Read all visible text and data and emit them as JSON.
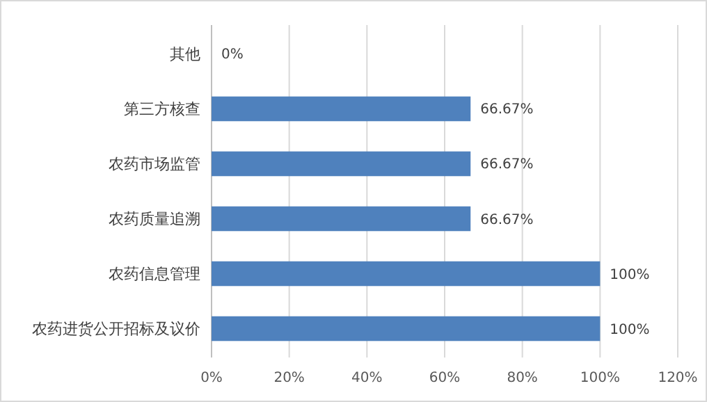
{
  "chart_data": {
    "type": "bar",
    "orientation": "horizontal",
    "categories": [
      "其他",
      "第三方核查",
      "农药市场监管",
      "农药质量追溯",
      "农药信息管理",
      "农药进货公开招标及议价"
    ],
    "values": [
      0,
      66.67,
      66.67,
      66.67,
      100,
      100
    ],
    "value_labels": [
      "0%",
      "66.67%",
      "66.67%",
      "66.67%",
      "100%",
      "100%"
    ],
    "color": "#4f81bd",
    "xlim": [
      0,
      120
    ],
    "xticks": [
      {
        "value": 0,
        "label": "0%"
      },
      {
        "value": 20,
        "label": "20%"
      },
      {
        "value": 40,
        "label": "40%"
      },
      {
        "value": 60,
        "label": "60%"
      },
      {
        "value": 80,
        "label": "80%"
      },
      {
        "value": 100,
        "label": "100%"
      },
      {
        "value": 120,
        "label": "120%"
      }
    ],
    "grid": "x"
  }
}
